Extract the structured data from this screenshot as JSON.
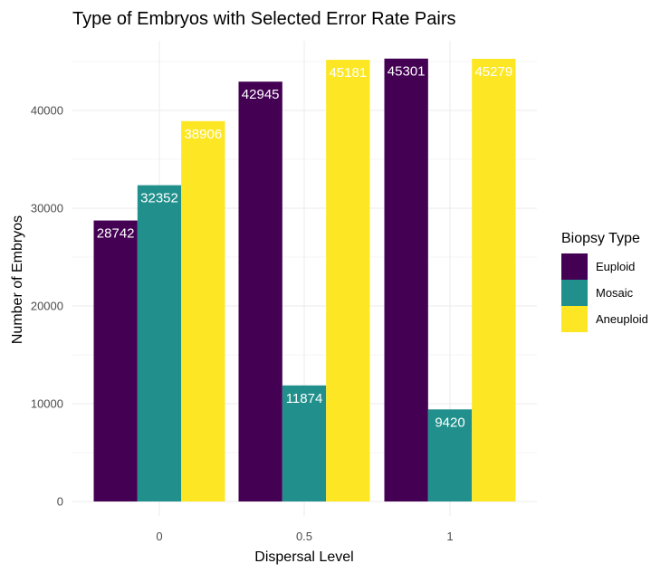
{
  "chart_data": {
    "type": "bar",
    "title": "Type of Embryos with Selected Error Rate Pairs",
    "xlabel": "Dispersal Level",
    "ylabel": "Number of Embryos",
    "categories": [
      "0",
      "0.5",
      "1"
    ],
    "series": [
      {
        "name": "Euploid",
        "color": "#440154",
        "values": [
          28742,
          42945,
          45301
        ]
      },
      {
        "name": "Mosaic",
        "color": "#21908C",
        "values": [
          32352,
          11874,
          9420
        ]
      },
      {
        "name": "Aneuploid",
        "color": "#FDE725",
        "values": [
          38906,
          45181,
          45279
        ]
      }
    ],
    "ylim": [
      0,
      46000
    ],
    "yticks": [
      0,
      10000,
      20000,
      30000,
      40000
    ],
    "legend": {
      "title": "Biopsy Type",
      "position": "right"
    },
    "grid": true
  }
}
